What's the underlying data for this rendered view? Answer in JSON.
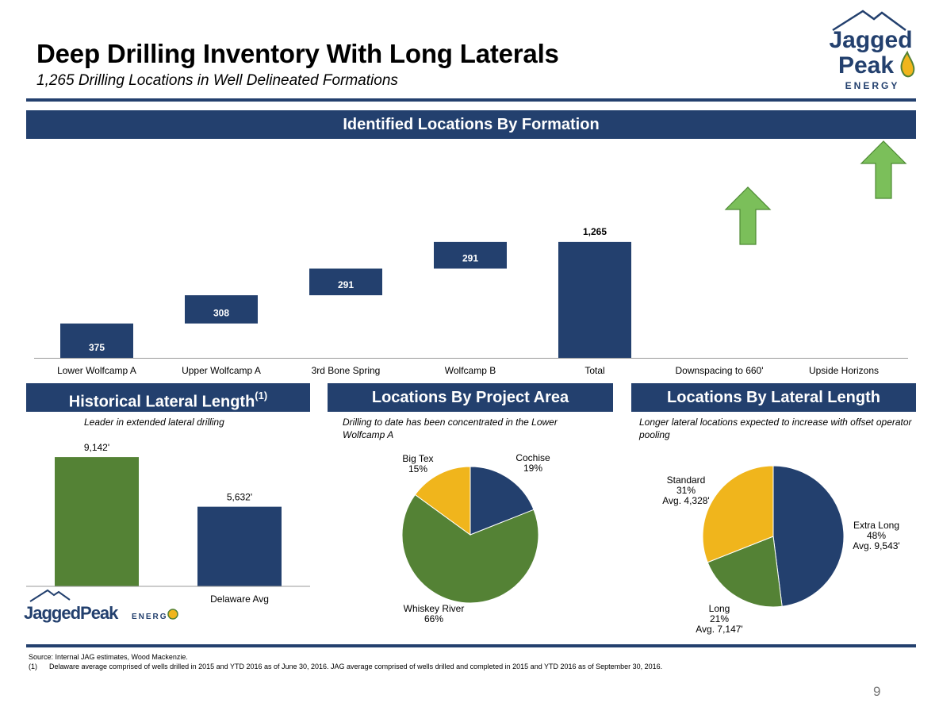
{
  "header": {
    "title": "Deep Drilling Inventory With Long Laterals",
    "subtitle": "1,265 Drilling Locations in Well Delineated Formations"
  },
  "logo": {
    "line1": "Jagged",
    "line2": "Peak",
    "line3": "ENERGY",
    "small": "JaggedPeak",
    "small_suffix": "ENERGY"
  },
  "colors": {
    "navy": "#23406e",
    "green": "#548235",
    "gold": "#f0b51c",
    "arrow_green": "#7bbf5a",
    "text": "#000000"
  },
  "sections": {
    "main": "Identified Locations By Formation",
    "historical": "Historical Lateral Length",
    "historical_sup": "(1)",
    "project_area": "Locations By Project Area",
    "lateral_length": "Locations By Lateral Length"
  },
  "notes": {
    "historical": "Leader in extended lateral drilling",
    "project_area": "Drilling to date has been concentrated in the Lower Wolfcamp A",
    "lateral_length": "Longer lateral locations expected to increase with offset operator pooling"
  },
  "chart_data": [
    {
      "type": "bar",
      "subtype": "waterfall",
      "title": "Identified Locations By Formation",
      "categories": [
        "Lower Wolfcamp A",
        "Upper Wolfcamp A",
        "3rd Bone Spring",
        "Wolfcamp B",
        "Total",
        "Downspacing to 660'",
        "Upside Horizons"
      ],
      "values": [
        375,
        308,
        291,
        291,
        1265,
        null,
        null
      ],
      "labels": [
        "375",
        "308",
        "291",
        "291",
        "1,265",
        "",
        ""
      ],
      "upside_arrows": [
        "Downspacing to 660'",
        "Upside Horizons"
      ],
      "color": "#23406e"
    },
    {
      "type": "bar",
      "title": "Historical Lateral Length",
      "categories": [
        "JAG",
        "Delaware Avg"
      ],
      "category_labels": [
        "",
        "Delaware Avg"
      ],
      "values": [
        9142,
        5632
      ],
      "labels": [
        "9,142'",
        "5,632'"
      ],
      "colors": [
        "#548235",
        "#23406e"
      ]
    },
    {
      "type": "pie",
      "title": "Locations By Project Area",
      "slices": [
        {
          "name": "Cochise",
          "value": 19,
          "label": "19%",
          "color": "#23406e"
        },
        {
          "name": "Whiskey River",
          "value": 66,
          "label": "66%",
          "color": "#548235"
        },
        {
          "name": "Big Tex",
          "value": 15,
          "label": "15%",
          "color": "#f0b51c"
        }
      ]
    },
    {
      "type": "pie",
      "title": "Locations By Lateral Length",
      "slices": [
        {
          "name": "Extra Long",
          "value": 48,
          "label": "48%",
          "avg": "Avg. 9,543'",
          "color": "#23406e"
        },
        {
          "name": "Long",
          "value": 21,
          "label": "21%",
          "avg": "Avg. 7,147'",
          "color": "#548235"
        },
        {
          "name": "Standard",
          "value": 31,
          "label": "31%",
          "avg": "Avg. 4,328'",
          "color": "#f0b51c"
        }
      ]
    }
  ],
  "footnotes": {
    "source": "Source: Internal JAG estimates, Wood Mackenzie.",
    "note1_marker": "(1)",
    "note1": "Delaware average comprised of wells drilled in 2015 and YTD 2016 as of June 30, 2016. JAG average comprised of wells drilled and completed in 2015 and YTD 2016 as of September 30, 2016."
  },
  "page_number": "9"
}
